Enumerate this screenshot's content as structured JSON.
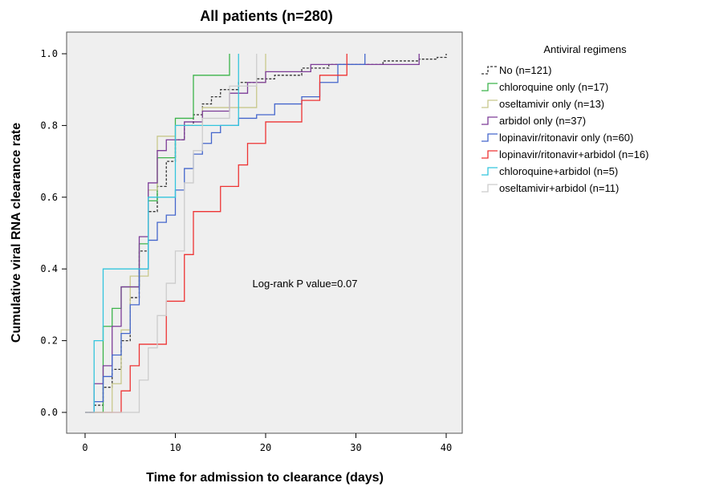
{
  "chart_data": {
    "type": "line",
    "step": true,
    "title": "All patients (n=280)",
    "xlabel": "Time for admission to clearance (days)",
    "ylabel": "Cumulative viral RNA clearance rate",
    "xlim": [
      0,
      40
    ],
    "ylim": [
      0,
      1.0
    ],
    "xticks": [
      "0",
      "10",
      "20",
      "30",
      "40"
    ],
    "yticks": [
      "0.0",
      "0.2",
      "0.4",
      "0.6",
      "0.8",
      "1.0"
    ],
    "annotation": "Log-rank P value=0.07",
    "legend_title": "Antiviral regimens",
    "legend_position": "right",
    "series": [
      {
        "name": "No (n=121)",
        "color": "#333333",
        "dash": true,
        "points": [
          [
            0,
            0
          ],
          [
            1,
            0.02
          ],
          [
            2,
            0.07
          ],
          [
            3,
            0.12
          ],
          [
            4,
            0.2
          ],
          [
            5,
            0.32
          ],
          [
            6,
            0.45
          ],
          [
            7,
            0.56
          ],
          [
            8,
            0.63
          ],
          [
            9,
            0.7
          ],
          [
            10,
            0.76
          ],
          [
            11,
            0.8
          ],
          [
            12,
            0.83
          ],
          [
            13,
            0.86
          ],
          [
            14,
            0.88
          ],
          [
            15,
            0.9
          ],
          [
            17,
            0.92
          ],
          [
            19,
            0.93
          ],
          [
            21,
            0.94
          ],
          [
            24,
            0.96
          ],
          [
            27,
            0.97
          ],
          [
            33,
            0.98
          ],
          [
            37,
            0.985
          ],
          [
            39,
            0.99
          ],
          [
            40,
            1.0
          ]
        ]
      },
      {
        "name": "chloroquine only (n=17)",
        "color": "#3cb44b",
        "points": [
          [
            0,
            0
          ],
          [
            2,
            0.24
          ],
          [
            3,
            0.29
          ],
          [
            4,
            0.35
          ],
          [
            6,
            0.47
          ],
          [
            7,
            0.59
          ],
          [
            8,
            0.71
          ],
          [
            10,
            0.82
          ],
          [
            12,
            0.94
          ],
          [
            16,
            1.0
          ]
        ]
      },
      {
        "name": "oseltamivir only (n=13)",
        "color": "#c8c88c",
        "points": [
          [
            0,
            0
          ],
          [
            3,
            0.08
          ],
          [
            4,
            0.23
          ],
          [
            5,
            0.38
          ],
          [
            7,
            0.62
          ],
          [
            8,
            0.77
          ],
          [
            10,
            0.8
          ],
          [
            13,
            0.85
          ],
          [
            19,
            0.92
          ],
          [
            20,
            1.0
          ]
        ]
      },
      {
        "name": "arbidol only (n=37)",
        "color": "#7d3c98",
        "points": [
          [
            0,
            0
          ],
          [
            1,
            0.08
          ],
          [
            2,
            0.13
          ],
          [
            3,
            0.24
          ],
          [
            4,
            0.35
          ],
          [
            6,
            0.49
          ],
          [
            7,
            0.64
          ],
          [
            8,
            0.73
          ],
          [
            9,
            0.76
          ],
          [
            11,
            0.81
          ],
          [
            13,
            0.84
          ],
          [
            16,
            0.89
          ],
          [
            18,
            0.92
          ],
          [
            20,
            0.95
          ],
          [
            25,
            0.97
          ],
          [
            30,
            0.97
          ],
          [
            37,
            1.0
          ]
        ]
      },
      {
        "name": "lopinavir/ritonavir only (n=60)",
        "color": "#4466cc",
        "points": [
          [
            0,
            0
          ],
          [
            1,
            0.03
          ],
          [
            2,
            0.1
          ],
          [
            3,
            0.16
          ],
          [
            4,
            0.22
          ],
          [
            5,
            0.3
          ],
          [
            6,
            0.4
          ],
          [
            7,
            0.48
          ],
          [
            8,
            0.53
          ],
          [
            9,
            0.55
          ],
          [
            10,
            0.62
          ],
          [
            11,
            0.68
          ],
          [
            12,
            0.72
          ],
          [
            13,
            0.75
          ],
          [
            14,
            0.78
          ],
          [
            15,
            0.8
          ],
          [
            17,
            0.82
          ],
          [
            19,
            0.83
          ],
          [
            21,
            0.86
          ],
          [
            24,
            0.88
          ],
          [
            26,
            0.92
          ],
          [
            28,
            0.97
          ],
          [
            31,
            1.0
          ]
        ]
      },
      {
        "name": "lopinavir/ritonavir+arbidol (n=16)",
        "color": "#ee3333",
        "points": [
          [
            0,
            0
          ],
          [
            4,
            0.06
          ],
          [
            5,
            0.13
          ],
          [
            6,
            0.19
          ],
          [
            9,
            0.31
          ],
          [
            11,
            0.44
          ],
          [
            12,
            0.56
          ],
          [
            15,
            0.63
          ],
          [
            17,
            0.69
          ],
          [
            18,
            0.75
          ],
          [
            20,
            0.81
          ],
          [
            24,
            0.87
          ],
          [
            26,
            0.94
          ],
          [
            29,
            1.0
          ]
        ]
      },
      {
        "name": "chloroquine+arbidol (n=5)",
        "color": "#33c5dd",
        "points": [
          [
            0,
            0
          ],
          [
            1,
            0.2
          ],
          [
            2,
            0.4
          ],
          [
            7,
            0.6
          ],
          [
            10,
            0.8
          ],
          [
            17,
            1.0
          ]
        ]
      },
      {
        "name": "oseltamivir+arbidol (n=11)",
        "color": "#cccccc",
        "points": [
          [
            0,
            0
          ],
          [
            6,
            0.09
          ],
          [
            7,
            0.18
          ],
          [
            8,
            0.27
          ],
          [
            9,
            0.36
          ],
          [
            10,
            0.45
          ],
          [
            11,
            0.64
          ],
          [
            12,
            0.73
          ],
          [
            13,
            0.82
          ],
          [
            16,
            0.91
          ],
          [
            19,
            1.0
          ]
        ]
      }
    ]
  }
}
